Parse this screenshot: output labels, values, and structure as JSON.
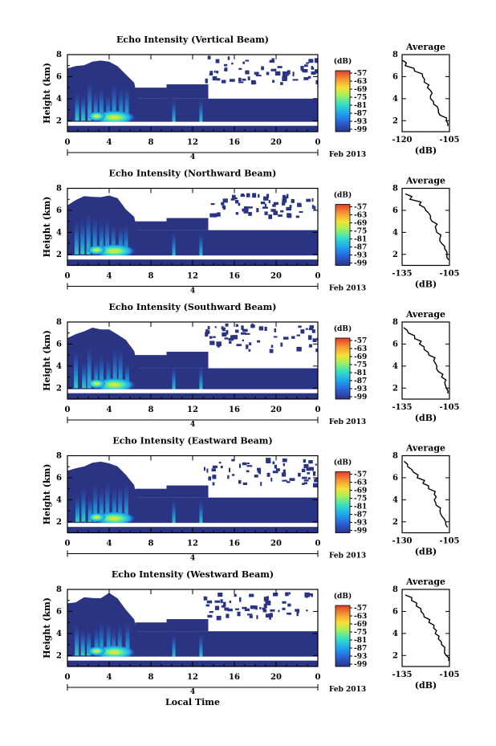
{
  "figure": {
    "xlabel": "Local Time",
    "date_label": "Feb 2013",
    "day_label": "4",
    "unit_label": "(dB)",
    "avg_title": "Average",
    "avg_xlabel": "(dB)"
  },
  "chart_data": [
    {
      "type": "heatmap",
      "title": "Echo Intensity (Vertical Beam)",
      "ylabel": "Height (km)",
      "xticks": [
        "0",
        "4",
        "8",
        "12",
        "16",
        "20",
        "0"
      ],
      "yticks": [
        "2",
        "4",
        "6",
        "8"
      ],
      "xlim": [
        0,
        24
      ],
      "ylim": [
        1,
        8
      ],
      "colorbar": {
        "label": "(dB)",
        "ticks": [
          "-57",
          "-63",
          "-69",
          "-75",
          "-81",
          "-87",
          "-93",
          "-99"
        ]
      },
      "average_profile": {
        "title": "Average",
        "xlabel": "(dB)",
        "xticks": [
          "-120",
          "-105"
        ],
        "xlim": [
          -120,
          -105
        ],
        "yticks": [
          "2",
          "4",
          "6",
          "8"
        ],
        "heights": [
          1.5,
          2,
          2.5,
          3,
          3.5,
          4,
          4.5,
          5,
          5.5,
          6,
          6.5,
          7,
          7.5
        ],
        "values": [
          -105.5,
          -106,
          -108,
          -108.5,
          -110,
          -111,
          -110.5,
          -112,
          -113,
          -113.5,
          -116,
          -119,
          -120
        ]
      }
    },
    {
      "type": "heatmap",
      "title": "Echo Intensity (Northward Beam)",
      "ylabel": "Height (km)",
      "xticks": [
        "0",
        "4",
        "8",
        "12",
        "16",
        "20",
        "0"
      ],
      "yticks": [
        "2",
        "4",
        "6",
        "8"
      ],
      "xlim": [
        0,
        24
      ],
      "ylim": [
        1,
        8
      ],
      "colorbar": {
        "label": "(dB)",
        "ticks": [
          "-57",
          "-63",
          "-69",
          "-75",
          "-81",
          "-87",
          "-93",
          "-99"
        ]
      },
      "average_profile": {
        "title": "Average",
        "xlabel": "(dB)",
        "xticks": [
          "-135",
          "-105"
        ],
        "xlim": [
          -135,
          -105
        ],
        "yticks": [
          "2",
          "4",
          "6",
          "8"
        ],
        "heights": [
          1.5,
          2,
          2.5,
          3,
          3.5,
          4,
          4.5,
          5,
          5.5,
          6,
          6.5,
          7,
          7.5
        ],
        "values": [
          -105.5,
          -106.5,
          -108,
          -110,
          -111,
          -113,
          -114,
          -116,
          -117,
          -120,
          -124,
          -130,
          -133
        ]
      }
    },
    {
      "type": "heatmap",
      "title": "Echo Intensity (Southward Beam)",
      "ylabel": "Height (km)",
      "xticks": [
        "0",
        "4",
        "8",
        "12",
        "16",
        "20",
        "0"
      ],
      "yticks": [
        "2",
        "4",
        "6",
        "8"
      ],
      "xlim": [
        0,
        24
      ],
      "ylim": [
        1,
        8
      ],
      "colorbar": {
        "label": "(dB)",
        "ticks": [
          "-57",
          "-63",
          "-69",
          "-75",
          "-81",
          "-87",
          "-93",
          "-99"
        ]
      },
      "average_profile": {
        "title": "Average",
        "xlabel": "(dB)",
        "xticks": [
          "-135",
          "-105"
        ],
        "xlim": [
          -135,
          -105
        ],
        "yticks": [
          "2",
          "4",
          "6",
          "8"
        ],
        "heights": [
          1.5,
          2,
          2.5,
          3,
          3.5,
          4,
          4.5,
          5,
          5.5,
          6,
          6.5,
          7,
          7.5
        ],
        "values": [
          -106,
          -107,
          -108,
          -110,
          -112,
          -113,
          -115,
          -118,
          -121,
          -124,
          -127,
          -131,
          -134
        ]
      }
    },
    {
      "type": "heatmap",
      "title": "Echo Intensity (Eastward Beam)",
      "ylabel": "Height (km)",
      "xticks": [
        "0",
        "4",
        "8",
        "12",
        "16",
        "20",
        "0"
      ],
      "yticks": [
        "2",
        "4",
        "6",
        "8"
      ],
      "xlim": [
        0,
        24
      ],
      "ylim": [
        1,
        8
      ],
      "colorbar": {
        "label": "(dB)",
        "ticks": [
          "-57",
          "-63",
          "-69",
          "-75",
          "-81",
          "-87",
          "-93",
          "-99"
        ]
      },
      "average_profile": {
        "title": "Average",
        "xlabel": "(dB)",
        "xticks": [
          "-130",
          "-105"
        ],
        "xlim": [
          -130,
          -105
        ],
        "yticks": [
          "2",
          "4",
          "6",
          "8"
        ],
        "heights": [
          1.5,
          2,
          2.5,
          3,
          3.5,
          4,
          4.5,
          5,
          5.5,
          6,
          6.5,
          7,
          7.5
        ],
        "values": [
          -106,
          -107,
          -109,
          -110,
          -112,
          -113,
          -113,
          -116,
          -119,
          -122,
          -124,
          -127,
          -129
        ]
      }
    },
    {
      "type": "heatmap",
      "title": "Echo Intensity (Westward Beam)",
      "ylabel": "Height (km)",
      "xticks": [
        "0",
        "4",
        "8",
        "12",
        "16",
        "20",
        "0"
      ],
      "yticks": [
        "2",
        "4",
        "6",
        "8"
      ],
      "xlim": [
        0,
        24
      ],
      "ylim": [
        1,
        8
      ],
      "colorbar": {
        "label": "(dB)",
        "ticks": [
          "-57",
          "-63",
          "-69",
          "-75",
          "-81",
          "-87",
          "-93",
          "-99"
        ]
      },
      "average_profile": {
        "title": "Average",
        "xlabel": "(dB)",
        "xticks": [
          "-135",
          "-105"
        ],
        "xlim": [
          -135,
          -105
        ],
        "yticks": [
          "2",
          "4",
          "6",
          "8"
        ],
        "heights": [
          1.5,
          2,
          2.5,
          3,
          3.5,
          4,
          4.5,
          5,
          5.5,
          6,
          6.5,
          7,
          7.5
        ],
        "values": [
          -105.5,
          -107,
          -108,
          -110,
          -112,
          -114,
          -115,
          -118,
          -121,
          -123,
          -126,
          -129,
          -133
        ]
      }
    }
  ],
  "colors": {
    "background": "#ffffff",
    "field_low": "#2a3483",
    "colormap": [
      "#2a3483",
      "#2b5fd6",
      "#1fa4f0",
      "#33e0c4",
      "#a6f05a",
      "#f5e135",
      "#f49632",
      "#e43a2a"
    ]
  }
}
